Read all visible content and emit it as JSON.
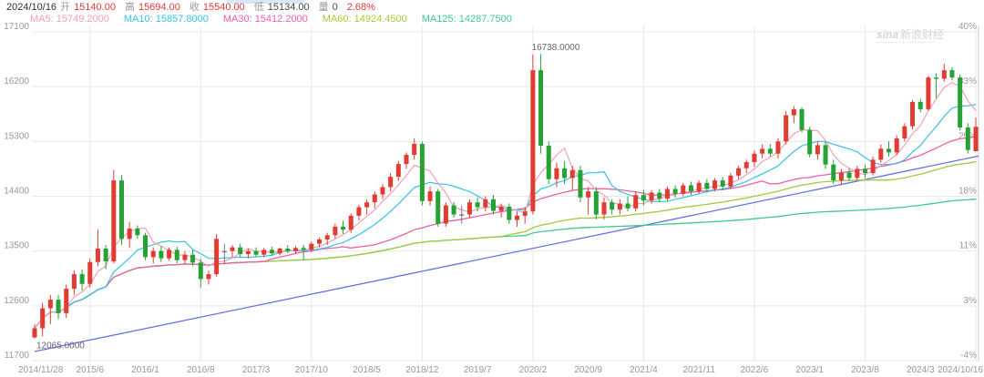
{
  "header": {
    "date": "2024/10/16",
    "quote_fields": [
      {
        "label": "开",
        "value": "15140.00",
        "color": "#e53935"
      },
      {
        "label": "高",
        "value": "15694.00",
        "color": "#e53935"
      },
      {
        "label": "收",
        "value": "15540.00",
        "color": "#e53935"
      },
      {
        "label": "低",
        "value": "15134.00",
        "color": "#4a4a4a"
      },
      {
        "label": "量",
        "value": "0",
        "color": "#4a4a4a"
      },
      {
        "label": "",
        "value": "2.68%",
        "color": "#e53935"
      }
    ],
    "ma_legend": [
      {
        "label": "MA5",
        "value": "15749.2000",
        "color": "#f4a0b4",
        "period": 5
      },
      {
        "label": "MA10",
        "value": "15857.8000",
        "color": "#38c2e2",
        "period": 10
      },
      {
        "label": "MA30",
        "value": "15412.2000",
        "color": "#ee5fa7",
        "period": 30
      },
      {
        "label": "MA60",
        "value": "14924.4500",
        "color": "#a5c93d",
        "period": 60
      },
      {
        "label": "MA125",
        "value": "14287.7500",
        "color": "#3fc98e",
        "period": 125
      }
    ]
  },
  "watermark": {
    "brand": "sina",
    "text": "新浪财经"
  },
  "axes": {
    "price_labels": [
      "17100",
      "16200",
      "15300",
      "14400",
      "13500",
      "12600",
      "11700"
    ],
    "percent_labels": [
      "40%",
      "33%",
      "25%",
      "18%",
      "11%",
      "3%",
      "-4%"
    ],
    "x_ticks": [
      {
        "index": 0,
        "label": "2014/11/28"
      },
      {
        "index": 7,
        "label": "2015/6"
      },
      {
        "index": 14,
        "label": "2016/1"
      },
      {
        "index": 21,
        "label": "2016/8"
      },
      {
        "index": 28,
        "label": "2017/3"
      },
      {
        "index": 35,
        "label": "2017/10"
      },
      {
        "index": 42,
        "label": "2018/5"
      },
      {
        "index": 49,
        "label": "2018/12"
      },
      {
        "index": 56,
        "label": "2019/7"
      },
      {
        "index": 63,
        "label": "2020/2"
      },
      {
        "index": 70,
        "label": "2020/9"
      },
      {
        "index": 77,
        "label": "2021/4"
      },
      {
        "index": 84,
        "label": "2021/11"
      },
      {
        "index": 91,
        "label": "2022/6"
      },
      {
        "index": 98,
        "label": "2023/1"
      },
      {
        "index": 105,
        "label": "2023/8"
      },
      {
        "index": 112,
        "label": "2024/3"
      },
      {
        "index": 119,
        "label": "2024/10/16"
      }
    ],
    "grid_tick_indices": [
      7,
      21,
      35,
      49,
      63,
      77,
      91,
      105,
      119
    ]
  },
  "annotations": [
    {
      "text": "12065.0000",
      "index": 0,
      "price": 12065,
      "placement": "below"
    },
    {
      "text": "16738.0000",
      "index": 64,
      "price": 16738,
      "placement": "above"
    }
  ],
  "colors": {
    "up": "#e23b32",
    "down": "#26a134",
    "doji": "#777777",
    "trend": "#6673e0",
    "grid": "#e9e9e9",
    "axis_text": "#999999",
    "annotation": "#666666",
    "border": "#cfcfcf"
  },
  "chart_data": {
    "type": "candlestick",
    "timeframe": "monthly",
    "title": "",
    "x_range": [
      "2014/11/28",
      "2024/10/16"
    ],
    "price_axis": {
      "min": 11700,
      "max": 17100,
      "step": 900
    },
    "percent_axis": {
      "labels": [
        "40%",
        "33%",
        "25%",
        "18%",
        "11%",
        "3%",
        "-4%"
      ]
    },
    "legend_position": "top-left",
    "grid": true,
    "trendline": {
      "from_index": 0,
      "from_price": 11850,
      "to_index": 119,
      "to_price": 15060
    },
    "moving_average_periods": [
      5,
      10,
      30,
      60,
      125
    ],
    "candles_ohlc": [
      [
        12080,
        12300,
        12065,
        12230
      ],
      [
        12230,
        12650,
        12100,
        12560
      ],
      [
        12560,
        12780,
        12300,
        12700
      ],
      [
        12700,
        12780,
        12380,
        12480
      ],
      [
        12480,
        12950,
        12400,
        12880
      ],
      [
        12880,
        13180,
        12780,
        13120
      ],
      [
        13120,
        13200,
        12850,
        12960
      ],
      [
        12960,
        13380,
        12900,
        13320
      ],
      [
        13320,
        13850,
        13250,
        13540
      ],
      [
        13540,
        13600,
        13200,
        13330
      ],
      [
        13330,
        14830,
        13300,
        14660
      ],
      [
        14660,
        14750,
        13600,
        13700
      ],
      [
        13700,
        13980,
        13550,
        13870
      ],
      [
        13870,
        13920,
        13700,
        13760
      ],
      [
        13760,
        13800,
        13350,
        13400
      ],
      [
        13400,
        13560,
        13300,
        13500
      ],
      [
        13500,
        13580,
        13320,
        13380
      ],
      [
        13380,
        13560,
        13340,
        13520
      ],
      [
        13520,
        13570,
        13300,
        13350
      ],
      [
        13350,
        13500,
        13280,
        13440
      ],
      [
        13440,
        13520,
        13250,
        13310
      ],
      [
        13310,
        13380,
        12900,
        13040
      ],
      [
        13040,
        13180,
        12950,
        13120
      ],
      [
        13120,
        13780,
        13080,
        13700
      ],
      [
        13500,
        13620,
        13280,
        13500
      ],
      [
        13500,
        13600,
        13400,
        13560
      ],
      [
        13560,
        13620,
        13400,
        13450
      ],
      [
        13450,
        13540,
        13380,
        13500
      ],
      [
        13500,
        13560,
        13400,
        13440
      ],
      [
        13440,
        13550,
        13400,
        13520
      ],
      [
        13520,
        13570,
        13420,
        13460
      ],
      [
        13460,
        13560,
        13430,
        13540
      ],
      [
        13540,
        13600,
        13460,
        13500
      ],
      [
        13500,
        13580,
        13450,
        13550
      ],
      [
        13550,
        13600,
        13350,
        13520
      ],
      [
        13520,
        13650,
        13480,
        13620
      ],
      [
        13620,
        13720,
        13560,
        13690
      ],
      [
        13690,
        13800,
        13600,
        13760
      ],
      [
        13760,
        13950,
        13700,
        13900
      ],
      [
        13900,
        14000,
        13780,
        13850
      ],
      [
        13850,
        14120,
        13800,
        14080
      ],
      [
        14080,
        14260,
        14000,
        14220
      ],
      [
        14220,
        14350,
        14100,
        14300
      ],
      [
        14300,
        14480,
        14200,
        14430
      ],
      [
        14430,
        14600,
        14350,
        14550
      ],
      [
        14550,
        14780,
        14480,
        14720
      ],
      [
        14720,
        14980,
        14650,
        14930
      ],
      [
        14930,
        15120,
        14850,
        15080
      ],
      [
        15080,
        15350,
        15000,
        15260
      ],
      [
        15260,
        15300,
        14250,
        14320
      ],
      [
        14320,
        14560,
        14250,
        14480
      ],
      [
        14480,
        14520,
        13900,
        13950
      ],
      [
        13950,
        14300,
        13900,
        14250
      ],
      [
        14250,
        14300,
        14050,
        14100
      ],
      [
        14100,
        14250,
        13950,
        14100
      ],
      [
        14100,
        14350,
        14050,
        14300
      ],
      [
        14300,
        14380,
        14150,
        14220
      ],
      [
        14220,
        14400,
        14150,
        14350
      ],
      [
        14350,
        14420,
        14100,
        14160
      ],
      [
        14160,
        14280,
        14050,
        14230
      ],
      [
        14230,
        14280,
        13950,
        14010
      ],
      [
        14010,
        14150,
        13900,
        14080
      ],
      [
        14080,
        14220,
        13950,
        14150
      ],
      [
        14150,
        16730,
        14100,
        16470
      ],
      [
        16470,
        16738,
        15100,
        15230
      ],
      [
        15230,
        15300,
        14600,
        14680
      ],
      [
        14680,
        14950,
        14550,
        14860
      ],
      [
        14860,
        14980,
        14600,
        14700
      ],
      [
        14700,
        14900,
        14500,
        14830
      ],
      [
        14830,
        14900,
        14300,
        14380
      ],
      [
        14380,
        14550,
        14100,
        14480
      ],
      [
        14480,
        14550,
        14020,
        14100
      ],
      [
        14100,
        14380,
        14020,
        14300
      ],
      [
        14300,
        14350,
        14100,
        14180
      ],
      [
        14180,
        14350,
        14100,
        14280
      ],
      [
        14280,
        14400,
        14150,
        14200
      ],
      [
        14200,
        14480,
        14150,
        14420
      ],
      [
        14420,
        14500,
        14250,
        14330
      ],
      [
        14330,
        14500,
        14280,
        14460
      ],
      [
        14460,
        14520,
        14300,
        14360
      ],
      [
        14360,
        14560,
        14320,
        14520
      ],
      [
        14520,
        14580,
        14380,
        14440
      ],
      [
        14440,
        14620,
        14400,
        14580
      ],
      [
        14580,
        14640,
        14420,
        14480
      ],
      [
        14480,
        14660,
        14440,
        14620
      ],
      [
        14620,
        14680,
        14460,
        14520
      ],
      [
        14520,
        14700,
        14480,
        14660
      ],
      [
        14660,
        14720,
        14500,
        14560
      ],
      [
        14560,
        14780,
        14520,
        14740
      ],
      [
        14740,
        14900,
        14680,
        14860
      ],
      [
        14860,
        15000,
        14780,
        14960
      ],
      [
        14960,
        15150,
        14880,
        15100
      ],
      [
        15100,
        15250,
        15020,
        15180
      ],
      [
        15180,
        15260,
        15050,
        15100
      ],
      [
        15100,
        15350,
        15020,
        15300
      ],
      [
        15300,
        15800,
        15250,
        15730
      ],
      [
        15730,
        15880,
        15600,
        15830
      ],
      [
        15830,
        15860,
        15450,
        15490
      ],
      [
        15490,
        15540,
        15040,
        15090
      ],
      [
        15090,
        15300,
        15000,
        15240
      ],
      [
        15240,
        15300,
        14850,
        14920
      ],
      [
        14920,
        15000,
        14600,
        14660
      ],
      [
        14660,
        14850,
        14600,
        14790
      ],
      [
        14790,
        14860,
        14650,
        14700
      ],
      [
        14700,
        14900,
        14660,
        14850
      ],
      [
        14850,
        14920,
        14700,
        14780
      ],
      [
        14780,
        15050,
        14740,
        15000
      ],
      [
        15000,
        15250,
        14950,
        15180
      ],
      [
        15180,
        15300,
        15050,
        15120
      ],
      [
        15120,
        15400,
        15080,
        15350
      ],
      [
        15350,
        15600,
        15300,
        15550
      ],
      [
        15550,
        15980,
        15500,
        15950
      ],
      [
        15950,
        16000,
        15780,
        15830
      ],
      [
        15830,
        16380,
        15800,
        16350
      ],
      [
        16350,
        16420,
        16010,
        16330
      ],
      [
        16330,
        16580,
        16280,
        16470
      ],
      [
        16470,
        16520,
        16300,
        16350
      ],
      [
        16350,
        16400,
        15480,
        15530
      ],
      [
        15530,
        15600,
        15100,
        15160
      ],
      [
        15140,
        15694,
        15134,
        15540
      ]
    ]
  }
}
